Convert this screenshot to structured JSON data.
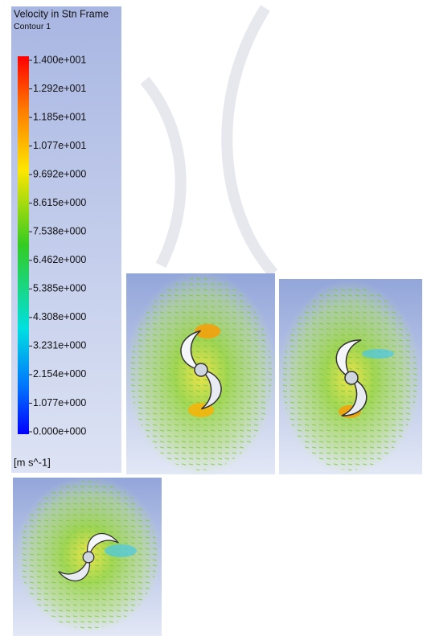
{
  "legend": {
    "title": "Velocity in Stn Frame",
    "subtitle": "Contour 1",
    "ticks": [
      "1.400e+001",
      "1.292e+001",
      "1.185e+001",
      "1.077e+001",
      "9.692e+000",
      "8.615e+000",
      "7.538e+000",
      "6.462e+000",
      "5.385e+000",
      "4.308e+000",
      "3.231e+000",
      "2.154e+000",
      "1.077e+000",
      "0.000e+000"
    ],
    "unit": "[m s^-1]"
  }
}
